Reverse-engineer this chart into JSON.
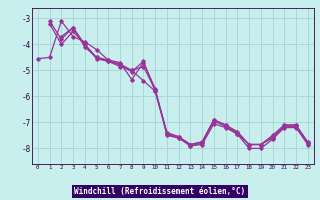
{
  "xlabel": "Windchill (Refroidissement éolien,°C)",
  "bg_color": "#c8eeed",
  "grid_color": "#a8d8d8",
  "line_color": "#993399",
  "label_bg": "#330066",
  "label_fg": "#ffffff",
  "xlim": [
    -0.5,
    23.5
  ],
  "ylim": [
    -8.6,
    -2.6
  ],
  "yticks": [
    -8,
    -7,
    -6,
    -5,
    -4,
    -3
  ],
  "xticks": [
    0,
    1,
    2,
    3,
    4,
    5,
    6,
    7,
    8,
    9,
    10,
    11,
    12,
    13,
    14,
    15,
    16,
    17,
    18,
    19,
    20,
    21,
    22,
    23
  ],
  "lines": [
    [
      -4.55,
      -4.5,
      -3.1,
      -3.7,
      -3.9,
      -4.2,
      -4.6,
      -4.7,
      -5.35,
      -4.7,
      -5.7,
      -7.5,
      -7.6,
      -7.9,
      -7.85,
      -7.05,
      -7.2,
      -7.45,
      -8.0,
      -8.0,
      -7.65,
      -7.2,
      -7.2,
      -7.85
    ],
    [
      null,
      -3.1,
      -3.8,
      -3.35,
      -4.0,
      -4.5,
      -4.6,
      -4.8,
      -5.05,
      -4.65,
      -5.8,
      -7.4,
      -7.55,
      -7.85,
      -7.75,
      -6.9,
      -7.1,
      -7.4,
      -7.85,
      -7.85,
      -7.55,
      -7.1,
      -7.1,
      -7.8
    ],
    [
      null,
      -3.2,
      -4.0,
      -3.5,
      -4.0,
      -4.55,
      -4.65,
      -4.85,
      -5.0,
      -5.4,
      -5.8,
      -7.45,
      -7.6,
      -7.9,
      -7.8,
      -6.95,
      -7.15,
      -7.45,
      -7.85,
      -7.85,
      -7.6,
      -7.15,
      -7.15,
      -7.8
    ],
    [
      null,
      null,
      -3.7,
      -3.35,
      -4.1,
      -4.5,
      -4.65,
      -4.75,
      -5.0,
      -4.85,
      -5.75,
      -7.4,
      -7.55,
      -7.85,
      -7.75,
      -6.9,
      -7.1,
      -7.35,
      -7.85,
      -7.85,
      -7.5,
      -7.1,
      -7.1,
      -7.75
    ]
  ]
}
